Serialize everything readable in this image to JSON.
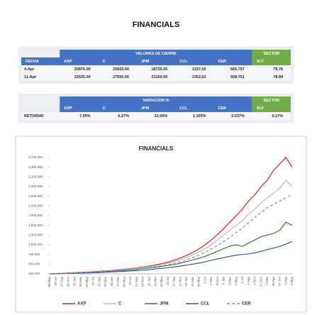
{
  "title": "FINANCIALS",
  "tables": [
    {
      "header": "VALORES DE CIERRE",
      "sector_header": "SECTOR",
      "columns": [
        "FECHA",
        "AXP",
        "C",
        "JPM",
        "CCL",
        "CER",
        "XLF"
      ],
      "rows": [
        [
          "4-Apr",
          "20875.00",
          "25925.00",
          "18725.00",
          "1337.05",
          "555.767",
          "78.76"
        ],
        [
          "11-Apr",
          "22525.00",
          "27550.00",
          "21150.00",
          "1352.62",
          "558.751",
          "78.89"
        ]
      ]
    },
    {
      "header": "VARIACION %",
      "sector_header": "SECTOR",
      "columns": [
        "AXP",
        "C",
        "JPM",
        "CCL",
        "CER",
        "XLF"
      ],
      "rows": [
        [
          "RETORNO",
          "7.90%",
          "6.27%",
          "12.95%",
          "1.165%",
          "0.537%",
          "0.17%"
        ]
      ]
    }
  ],
  "chart_data": {
    "type": "line",
    "title": "FINANCIALS",
    "categories": [
      "30-May",
      "29-Jul",
      "27-Sep",
      "26-Nov",
      "25-Jan",
      "26-Mar",
      "25-May",
      "24-Jul",
      "22-Sep",
      "21-Nov",
      "20-Jan",
      "21-Mar",
      "20-May",
      "19-Jul",
      "17-Sep",
      "16-Nov",
      "15-Jan",
      "16-Mar",
      "15-May",
      "14-Jul",
      "12-Sep",
      "11-Nov",
      "10-Jan",
      "11-Mar",
      "10-May",
      "9-Jul",
      "7-Sep",
      "6-Nov",
      "5-Jan",
      "6-Mar",
      "5-May",
      "4-Jul",
      "2-Sep",
      "1-Nov",
      "31-Dec",
      "1-Mar",
      "30-Apr",
      "29-Jun",
      "5-Mar",
      "4-May"
    ],
    "ylim": [
      100000,
      3700000
    ],
    "yticks": [
      {
        "value": 100000,
        "label": "100,000"
      },
      {
        "value": 400000,
        "label": "400,000"
      },
      {
        "value": 700000,
        "label": "700,000"
      },
      {
        "value": 1000000,
        "label": "1,000,000"
      },
      {
        "value": 1300000,
        "label": "1,300,000"
      },
      {
        "value": 1600000,
        "label": "1,600,000"
      },
      {
        "value": 1900000,
        "label": "1,900,000"
      },
      {
        "value": 2200000,
        "label": "2,200,000"
      },
      {
        "value": 2500000,
        "label": "2,500,000"
      },
      {
        "value": 2800000,
        "label": "2,800,000"
      },
      {
        "value": 3100000,
        "label": "3,100,000"
      },
      {
        "value": 3400000,
        "label": "3,400,000"
      },
      {
        "value": 3700000,
        "label": "3,700,000"
      }
    ],
    "series": [
      {
        "name": "AXP",
        "color": "#e0201b",
        "values": [
          100000,
          110000,
          118000,
          126000,
          135000,
          145000,
          155000,
          165000,
          178000,
          190000,
          205000,
          222000,
          242000,
          262000,
          285000,
          310000,
          340000,
          375000,
          415000,
          460000,
          520000,
          590000,
          670000,
          760000,
          870000,
          1000000,
          1150000,
          1320000,
          1500000,
          1700000,
          1900000,
          2100000,
          2350000,
          2550000,
          2800000,
          3000000,
          3300000,
          3500000,
          3700000,
          3400000
        ]
      },
      {
        "name": "C",
        "color": "#bdbdbd",
        "values": [
          100000,
          108000,
          115000,
          122000,
          130000,
          140000,
          150000,
          160000,
          170000,
          182000,
          195000,
          210000,
          230000,
          250000,
          270000,
          295000,
          320000,
          350000,
          390000,
          430000,
          480000,
          540000,
          610000,
          690000,
          780000,
          880000,
          1000000,
          1150000,
          1300000,
          1450000,
          1600000,
          1750000,
          1950000,
          2100000,
          2300000,
          2450000,
          2600000,
          2750000,
          3000000,
          2800000
        ]
      },
      {
        "name": "JPM",
        "color": "#3d7a2a",
        "values": [
          100000,
          105000,
          110000,
          118000,
          125000,
          132000,
          140000,
          150000,
          160000,
          170000,
          180000,
          195000,
          210000,
          225000,
          240000,
          260000,
          280000,
          300000,
          330000,
          360000,
          390000,
          430000,
          480000,
          530000,
          580000,
          640000,
          720000,
          800000,
          880000,
          960000,
          1000000,
          950000,
          1050000,
          1150000,
          1250000,
          1300000,
          1350000,
          1450000,
          1700000,
          1600000
        ]
      },
      {
        "name": "CCL",
        "color": "#2f55b5",
        "values": [
          100000,
          105000,
          110000,
          115000,
          120000,
          125000,
          130000,
          135000,
          140000,
          150000,
          160000,
          170000,
          180000,
          190000,
          200000,
          215000,
          230000,
          250000,
          270000,
          290000,
          310000,
          340000,
          370000,
          400000,
          430000,
          470000,
          520000,
          560000,
          600000,
          640000,
          680000,
          700000,
          720000,
          750000,
          800000,
          850000,
          900000,
          950000,
          1020000,
          1100000
        ]
      },
      {
        "name": "CER",
        "color": "#7f93b8",
        "dash": "4,3",
        "values": [
          100000,
          106000,
          112000,
          120000,
          128000,
          136000,
          145000,
          155000,
          165000,
          175000,
          185000,
          200000,
          215000,
          230000,
          250000,
          270000,
          295000,
          320000,
          350000,
          380000,
          420000,
          470000,
          530000,
          600000,
          680000,
          770000,
          870000,
          980000,
          1100000,
          1230000,
          1370000,
          1520000,
          1680000,
          1850000,
          2000000,
          2150000,
          2250000,
          2350000,
          2450000,
          2550000
        ]
      }
    ]
  }
}
